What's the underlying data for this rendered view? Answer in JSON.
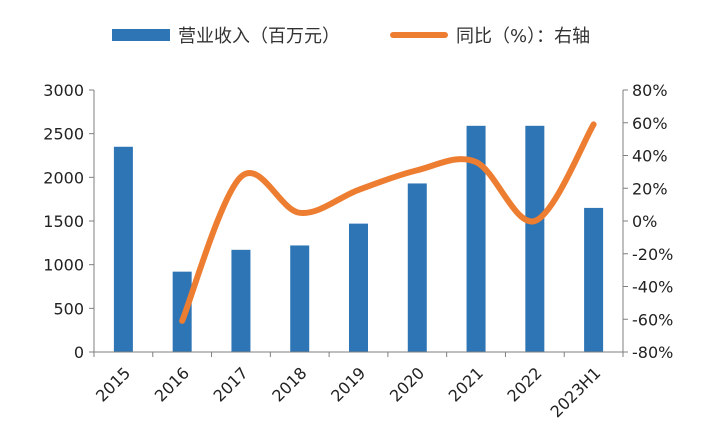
{
  "chart_data": {
    "type": "bar",
    "categories": [
      "2015",
      "2016",
      "2017",
      "2018",
      "2019",
      "2020",
      "2021",
      "2022",
      "2023H1"
    ],
    "series": [
      {
        "name": "营业收入（百万元）",
        "type": "bar",
        "axis": "left",
        "values": [
          2350,
          920,
          1170,
          1220,
          1470,
          1930,
          2590,
          2590,
          1650
        ]
      },
      {
        "name": "同比（%）：右轴",
        "type": "line",
        "axis": "right",
        "smooth": true,
        "values": [
          null,
          -61,
          27,
          5,
          19,
          31,
          36,
          0,
          59
        ]
      }
    ],
    "ylim_left": [
      0,
      3000
    ],
    "yticks_left": [
      "0",
      "500",
      "1000",
      "1500",
      "2000",
      "2500",
      "3000"
    ],
    "ylim_right": [
      -80,
      80
    ],
    "yticks_right": [
      "-80%",
      "-60%",
      "-40%",
      "-20%",
      "0%",
      "20%",
      "40%",
      "60%",
      "80%"
    ],
    "legend_position": "top",
    "grid": false,
    "colors": {
      "bar": "#2E75B6",
      "line": "#ED7D31",
      "axis": "#7F7F7F"
    }
  }
}
